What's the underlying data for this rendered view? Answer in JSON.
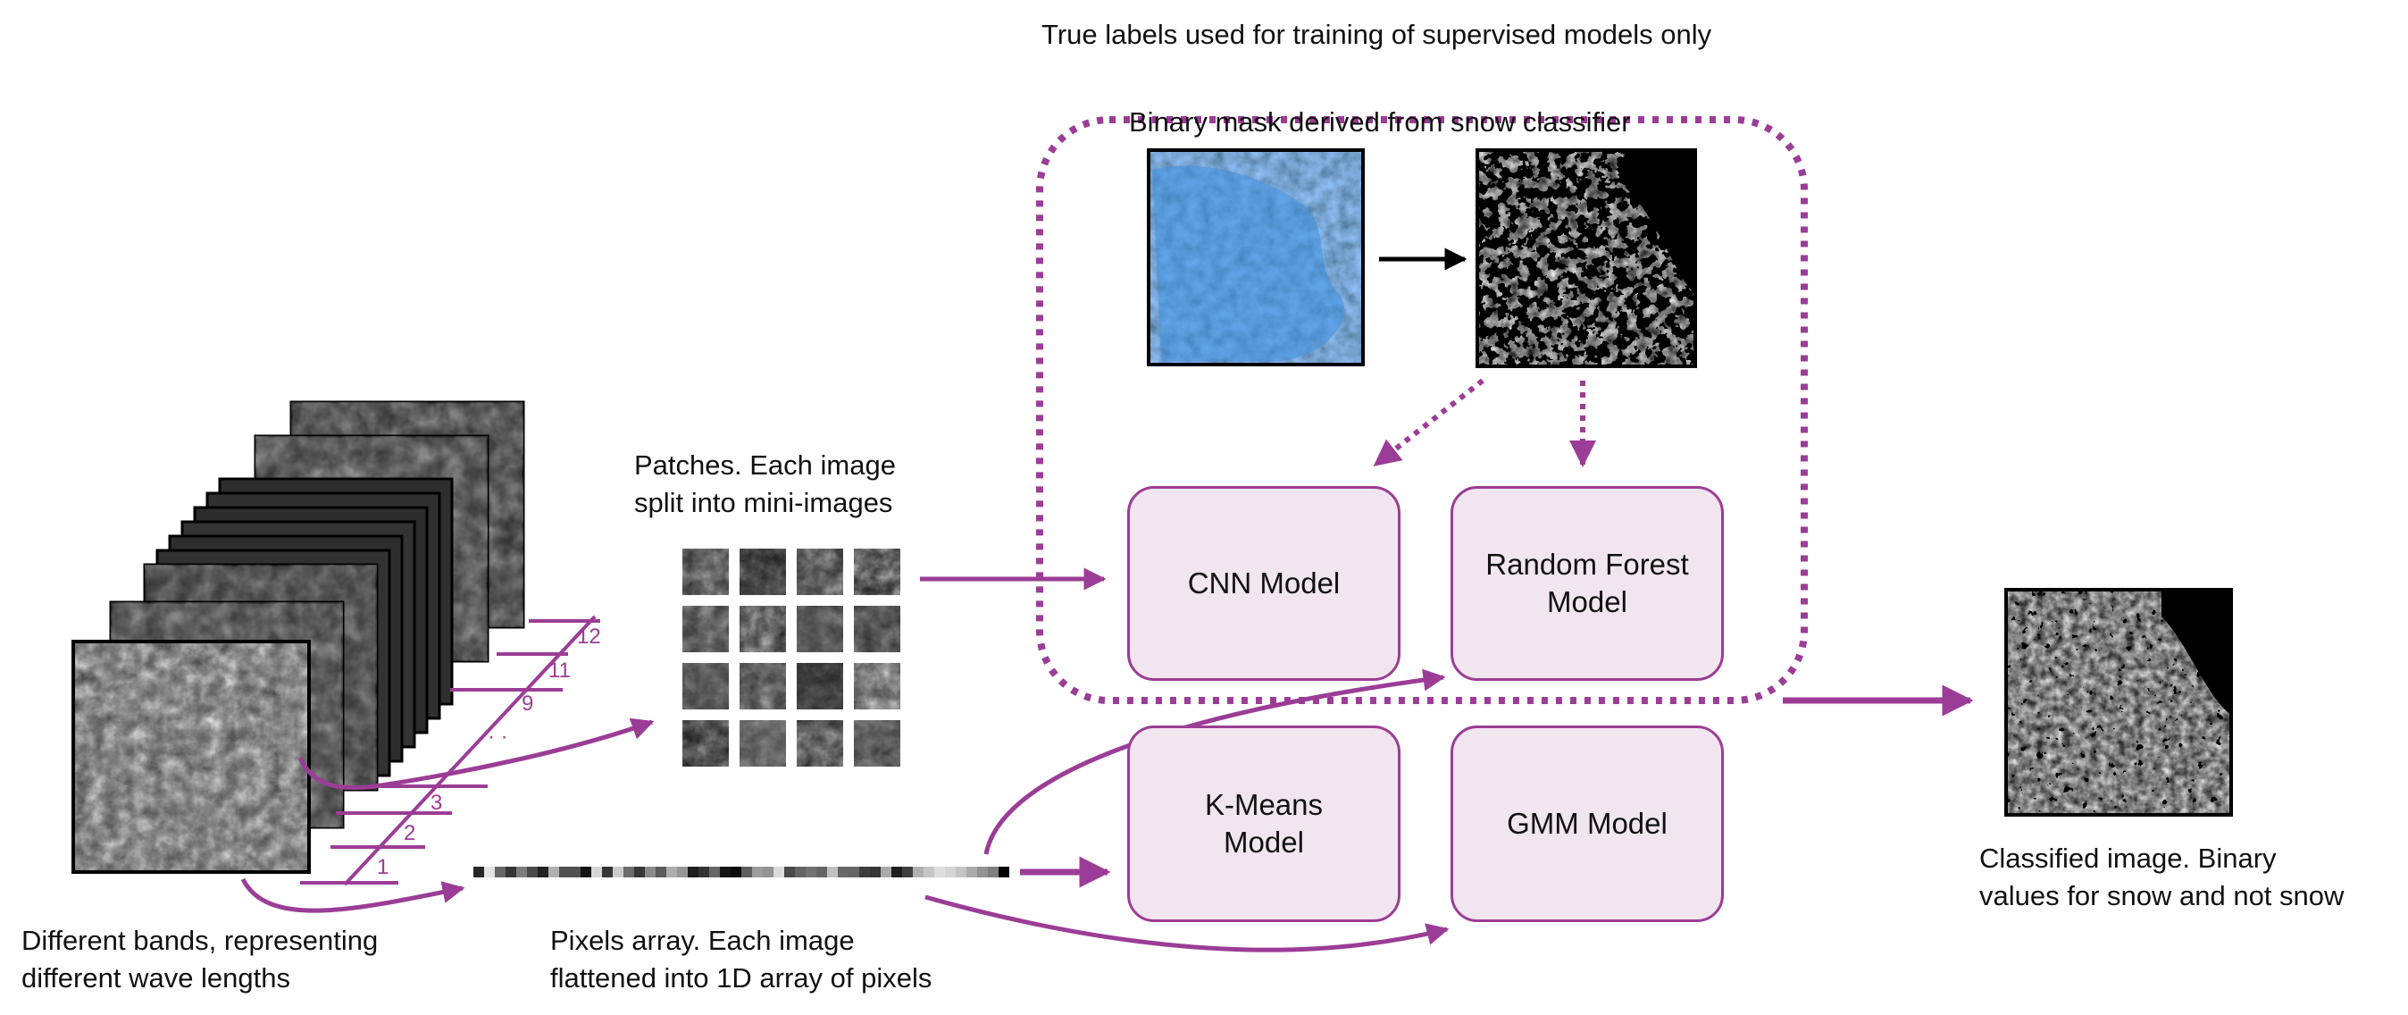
{
  "labels": {
    "supervised_title": "True labels used for training of supervised models only",
    "mask_title": "Binary mask derived from snow classifier",
    "patches_line1": "Patches. Each image",
    "patches_line2": "split into mini-images",
    "bands_line1": "Different bands, representing",
    "bands_line2": "different wave lengths",
    "pixels_line1": "Pixels array. Each image",
    "pixels_line2": "flattened into 1D array of pixels",
    "classified_line1": "Classified image. Binary",
    "classified_line2": "values for snow and not snow"
  },
  "models": {
    "cnn": "CNN Model",
    "rf_line1": "Random Forest",
    "rf_line2": "Model",
    "kmeans_line1": "K-Means",
    "kmeans_line2": "Model",
    "gmm": "GMM Model"
  },
  "band_ticks": [
    "12",
    "11",
    "9",
    "3",
    "2",
    "1"
  ],
  "band_tick_dots": "·  ·",
  "colors": {
    "accent": "#9b3d96",
    "box_fill": "#f1e6ef",
    "snow_blue": "#3d8fe0"
  },
  "icons": {
    "band_stack": "satellite-band-stack",
    "rgb_image": "rgb-snow-image",
    "mask_image": "binary-mask-image",
    "result_image": "classified-output-image"
  }
}
